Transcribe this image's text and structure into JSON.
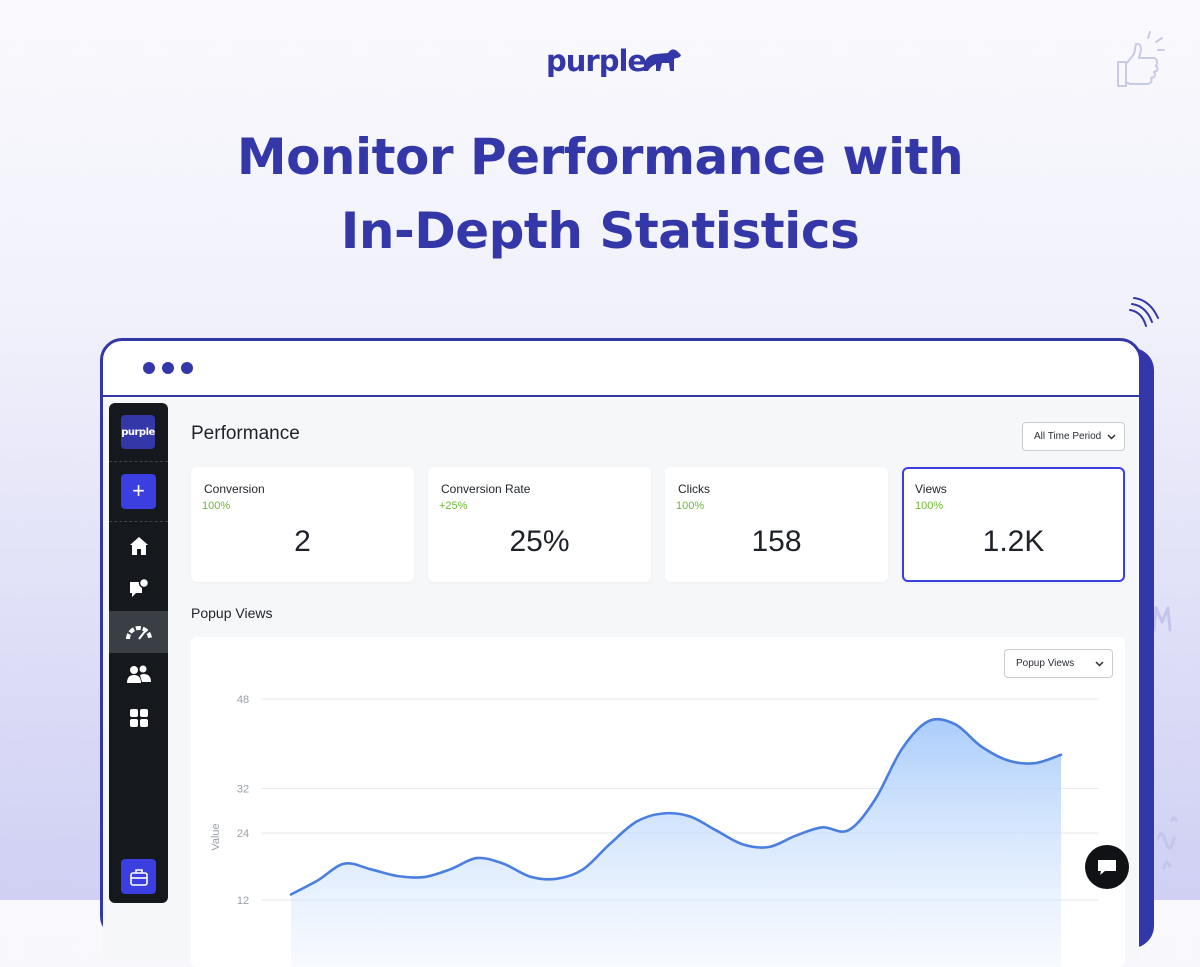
{
  "brand": {
    "name": "purple"
  },
  "headline": {
    "line1": "Monitor Performance with",
    "line2": "In-Depth Statistics"
  },
  "colors": {
    "brand": "#3437a8",
    "accent": "#3b3fe0",
    "positive": "#6dbb33",
    "line": "#4a7fe0"
  },
  "sidebar": {
    "logo_text": "purple",
    "items": [
      {
        "icon": "home-icon"
      },
      {
        "icon": "popup-message-icon"
      },
      {
        "icon": "gauge-icon",
        "active": true
      },
      {
        "icon": "users-icon"
      },
      {
        "icon": "grid-widgets-icon"
      }
    ],
    "bottom_icon": "briefcase-icon"
  },
  "main": {
    "title": "Performance",
    "period_select": "All Time Period",
    "cards": [
      {
        "title": "Conversion",
        "change": "100%",
        "value": "2"
      },
      {
        "title": "Conversion Rate",
        "change": "+25%",
        "value": "25%"
      },
      {
        "title": "Clicks",
        "change": "100%",
        "value": "158"
      },
      {
        "title": "Views",
        "change": "100%",
        "value": "1.2K",
        "selected": true
      }
    ],
    "chart_section_title": "Popup Views",
    "chart_select": "Popup Views"
  },
  "chart_data": {
    "type": "area",
    "ylabel": "Value",
    "xlabel": "",
    "ylim": [
      0,
      48
    ],
    "yticks": [
      48,
      32,
      24,
      12
    ],
    "grid": true,
    "series": [
      {
        "values": [
          13,
          15.5,
          18.5,
          17.5,
          16.3,
          16.1,
          17.5,
          19.5,
          18.5,
          16.2,
          15.8,
          17.5,
          22,
          26,
          27.5,
          27,
          24.5,
          22,
          21.5,
          23.5,
          25,
          24.5,
          30,
          39,
          44,
          43.5,
          39.5,
          37,
          36.5,
          38
        ]
      }
    ]
  }
}
